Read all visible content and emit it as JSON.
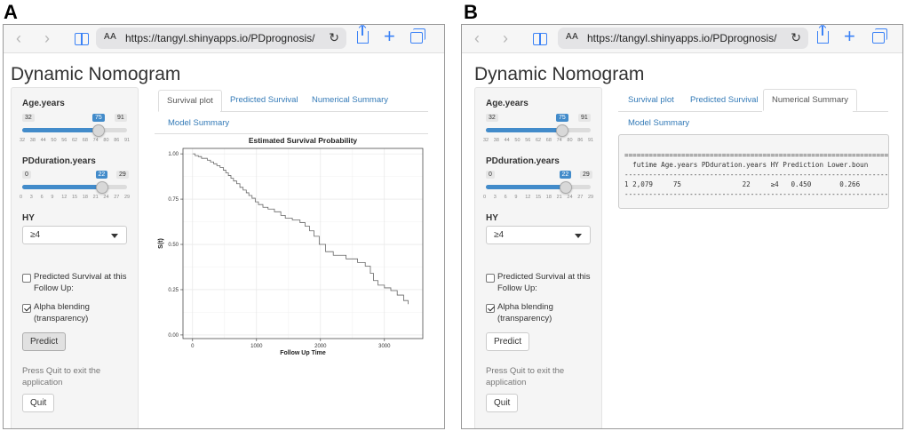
{
  "panels": [
    {
      "letter": "A",
      "browser": {
        "url": "https://tangyl.shinyapps.io/PDprognosis/",
        "text_size_label": "AA"
      },
      "title": "Dynamic Nomogram",
      "age": {
        "label": "Age.years",
        "min": "32",
        "max": "91",
        "value": "75",
        "value_num": 75,
        "range": [
          32,
          91
        ],
        "ticks": [
          "32",
          "38",
          "44",
          "50",
          "56",
          "62",
          "68",
          "74",
          "80",
          "86",
          "91"
        ]
      },
      "pd": {
        "label": "PDduration.years",
        "min": "0",
        "max": "29",
        "value": "22",
        "value_num": 22,
        "range": [
          0,
          29
        ],
        "ticks": [
          "0",
          "3",
          "6",
          "9",
          "12",
          "15",
          "18",
          "21",
          "24",
          "27",
          "29"
        ]
      },
      "hy": {
        "label": "HY",
        "selected": "≥4"
      },
      "checkbox_predicted": {
        "label": "Predicted Survival at this Follow Up:",
        "checked": false
      },
      "checkbox_alpha": {
        "label": "Alpha blending (transparency)",
        "checked": true
      },
      "predict_label": "Predict",
      "quit_help": "Press Quit to exit the application",
      "quit_label": "Quit",
      "tabs": [
        "Survival plot",
        "Predicted Survival",
        "Numerical Summary",
        "Model Summary"
      ],
      "active_tab": 0
    },
    {
      "letter": "B",
      "browser": {
        "url": "https://tangyl.shinyapps.io/PDprognosis/",
        "text_size_label": "AA"
      },
      "title": "Dynamic Nomogram",
      "age": {
        "label": "Age.years",
        "min": "32",
        "max": "91",
        "value": "75",
        "value_num": 75,
        "range": [
          32,
          91
        ],
        "ticks": [
          "32",
          "38",
          "44",
          "50",
          "56",
          "62",
          "68",
          "74",
          "80",
          "86",
          "91"
        ]
      },
      "pd": {
        "label": "PDduration.years",
        "min": "0",
        "max": "29",
        "value": "22",
        "value_num": 22,
        "range": [
          0,
          29
        ],
        "ticks": [
          "0",
          "3",
          "6",
          "9",
          "12",
          "15",
          "18",
          "21",
          "24",
          "27",
          "29"
        ]
      },
      "hy": {
        "label": "HY",
        "selected": "≥4"
      },
      "checkbox_predicted": {
        "label": "Predicted Survival at this Follow Up:",
        "checked": false
      },
      "checkbox_alpha": {
        "label": "Alpha blending (transparency)",
        "checked": true
      },
      "predict_label": "Predict",
      "quit_help": "Press Quit to exit the application",
      "quit_label": "Quit",
      "tabs": [
        "Survival plot",
        "Predicted Survival",
        "Numerical Summary",
        "Model Summary"
      ],
      "active_tab": 2,
      "summary": {
        "rule": "==========================================================================",
        "header": "  futime Age.years PDduration.years HY Prediction Lower.boun",
        "divider": "--------------------------------------------------------------------------",
        "row": "1 2,079     75               22     ≥4   0.450       0.266",
        "divider2": "--------------------------------------------------------------------------"
      }
    }
  ],
  "chart_data": {
    "type": "line",
    "title": "Estimated Survival Probability",
    "xlabel": "Follow Up Time",
    "ylabel": "S(t)",
    "xlim": [
      -150,
      3600
    ],
    "ylim": [
      -0.02,
      1.03
    ],
    "xticks": [
      "0",
      "1000",
      "2000",
      "3000"
    ],
    "xtick_values": [
      0,
      1000,
      2000,
      3000
    ],
    "yticks": [
      "0.00",
      "0.25",
      "0.50",
      "0.75",
      "1.00"
    ],
    "ytick_values": [
      0,
      0.25,
      0.5,
      0.75,
      1.0
    ],
    "grid": true,
    "series": [
      {
        "x": [
          0,
          40,
          90,
          140,
          230,
          280,
          330,
          380,
          430,
          480,
          520,
          560,
          600,
          640,
          690,
          740,
          790,
          840,
          880,
          930,
          980,
          1030,
          1100,
          1180,
          1280,
          1380,
          1450,
          1560,
          1680,
          1760,
          1830,
          1900,
          1980,
          2080,
          2200,
          2400,
          2580,
          2700,
          2780,
          2830,
          2900,
          3000,
          3100,
          3200,
          3300,
          3370
        ],
        "y": [
          1.0,
          0.99,
          0.985,
          0.975,
          0.965,
          0.955,
          0.945,
          0.935,
          0.925,
          0.91,
          0.895,
          0.88,
          0.865,
          0.85,
          0.835,
          0.815,
          0.8,
          0.785,
          0.77,
          0.755,
          0.735,
          0.72,
          0.705,
          0.695,
          0.68,
          0.66,
          0.645,
          0.635,
          0.62,
          0.6,
          0.575,
          0.545,
          0.5,
          0.46,
          0.44,
          0.42,
          0.4,
          0.38,
          0.34,
          0.3,
          0.275,
          0.26,
          0.245,
          0.22,
          0.19,
          0.17
        ]
      }
    ]
  }
}
